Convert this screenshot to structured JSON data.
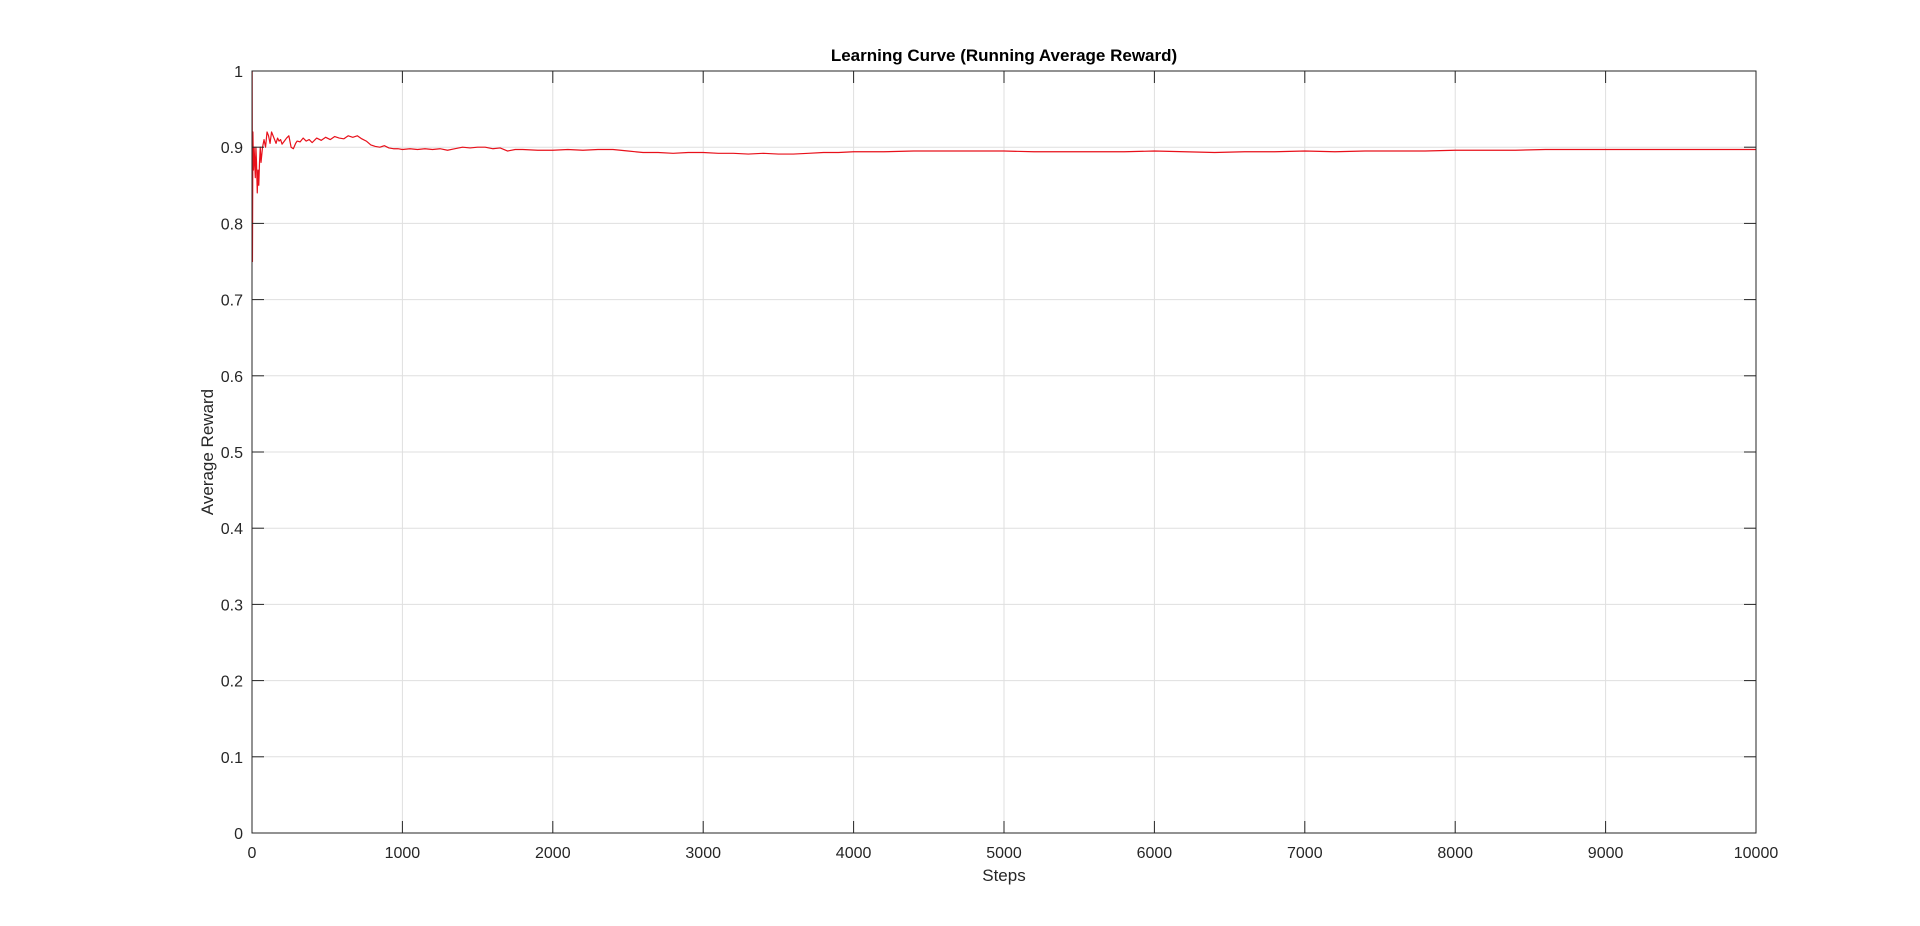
{
  "chart_data": {
    "type": "line",
    "title": "Learning Curve (Running Average Reward)",
    "xlabel": "Steps",
    "ylabel": "Average Reward",
    "xlim": [
      0,
      10000
    ],
    "ylim": [
      0,
      1
    ],
    "xticks": [
      0,
      1000,
      2000,
      3000,
      4000,
      5000,
      6000,
      7000,
      8000,
      9000,
      10000
    ],
    "yticks": [
      0,
      0.1,
      0.2,
      0.3,
      0.4,
      0.5,
      0.6,
      0.7,
      0.8,
      0.9,
      1
    ],
    "grid": true,
    "legend": "none",
    "series": [
      {
        "color": "#e8101a",
        "x": [
          1,
          3,
          6,
          10,
          14,
          18,
          22,
          26,
          30,
          35,
          40,
          45,
          50,
          55,
          60,
          70,
          80,
          90,
          100,
          110,
          120,
          130,
          140,
          150,
          160,
          170,
          180,
          190,
          200,
          215,
          230,
          245,
          260,
          275,
          290,
          300,
          320,
          340,
          360,
          380,
          400,
          430,
          460,
          490,
          520,
          550,
          580,
          610,
          640,
          670,
          700,
          730,
          760,
          790,
          820,
          850,
          880,
          910,
          940,
          970,
          1000,
          1050,
          1100,
          1150,
          1200,
          1250,
          1300,
          1350,
          1400,
          1450,
          1500,
          1550,
          1600,
          1650,
          1700,
          1750,
          1800,
          1900,
          2000,
          2100,
          2200,
          2300,
          2400,
          2500,
          2600,
          2700,
          2800,
          2900,
          3000,
          3100,
          3200,
          3300,
          3400,
          3500,
          3600,
          3700,
          3800,
          3900,
          4000,
          4200,
          4400,
          4600,
          4800,
          5000,
          5200,
          5400,
          5600,
          5800,
          6000,
          6200,
          6400,
          6600,
          6800,
          7000,
          7200,
          7400,
          7600,
          7800,
          8000,
          8200,
          8400,
          8600,
          8800,
          9000,
          9200,
          9400,
          9600,
          9800,
          10000
        ],
        "y": [
          1.0,
          0.75,
          0.92,
          0.87,
          0.9,
          0.88,
          0.86,
          0.9,
          0.88,
          0.84,
          0.87,
          0.85,
          0.88,
          0.9,
          0.88,
          0.9,
          0.91,
          0.9,
          0.92,
          0.915,
          0.905,
          0.92,
          0.915,
          0.91,
          0.905,
          0.912,
          0.908,
          0.91,
          0.904,
          0.908,
          0.912,
          0.915,
          0.9,
          0.898,
          0.905,
          0.908,
          0.907,
          0.912,
          0.908,
          0.91,
          0.906,
          0.912,
          0.909,
          0.913,
          0.91,
          0.914,
          0.912,
          0.911,
          0.915,
          0.913,
          0.915,
          0.911,
          0.908,
          0.903,
          0.901,
          0.9,
          0.902,
          0.899,
          0.898,
          0.898,
          0.897,
          0.898,
          0.897,
          0.898,
          0.897,
          0.898,
          0.896,
          0.898,
          0.9,
          0.899,
          0.9,
          0.9,
          0.898,
          0.899,
          0.895,
          0.897,
          0.897,
          0.896,
          0.896,
          0.897,
          0.896,
          0.897,
          0.897,
          0.895,
          0.893,
          0.893,
          0.892,
          0.893,
          0.893,
          0.892,
          0.892,
          0.891,
          0.892,
          0.891,
          0.891,
          0.892,
          0.893,
          0.893,
          0.894,
          0.894,
          0.895,
          0.895,
          0.895,
          0.895,
          0.894,
          0.894,
          0.894,
          0.894,
          0.895,
          0.894,
          0.893,
          0.894,
          0.894,
          0.895,
          0.894,
          0.895,
          0.895,
          0.895,
          0.896,
          0.896,
          0.896,
          0.897,
          0.897,
          0.897,
          0.897,
          0.897,
          0.897,
          0.897,
          0.897
        ]
      }
    ]
  }
}
